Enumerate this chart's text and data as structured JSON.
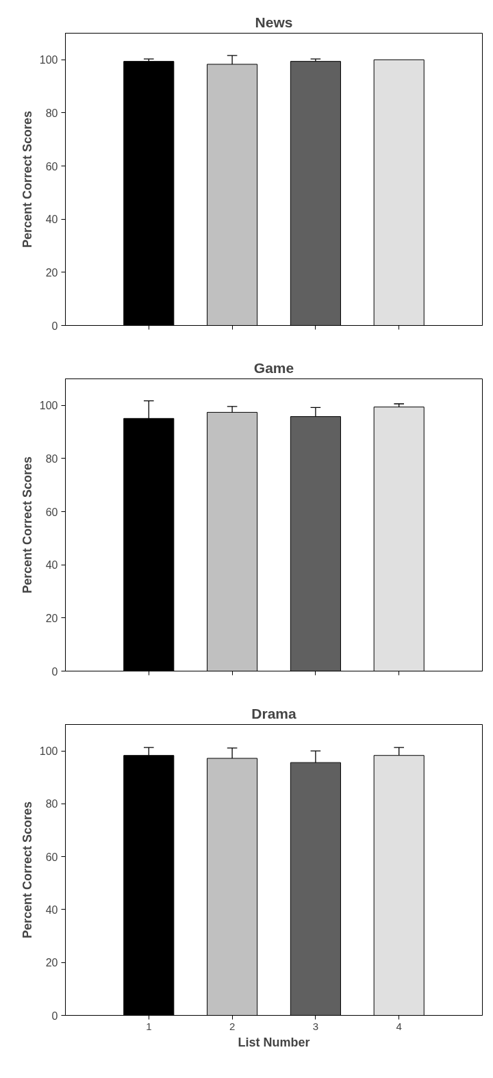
{
  "chart_data": [
    {
      "type": "bar",
      "title": "News",
      "ylabel": "Percent Correct Scores",
      "x": [
        1,
        2,
        3,
        4
      ],
      "xlim": [
        0,
        5
      ],
      "xticks": [
        {
          "value": 1,
          "label": null
        },
        {
          "value": 2,
          "label": null
        },
        {
          "value": 3,
          "label": null
        },
        {
          "value": 4,
          "label": null
        }
      ],
      "ylim": [
        0,
        110
      ],
      "yticks": [
        0,
        20,
        40,
        60,
        80,
        100
      ],
      "tick_labels": "y",
      "colors": [
        "#000000",
        "#c0c0c0",
        "#606060",
        "#e0e0e0"
      ],
      "values": [
        99.4,
        98.3,
        99.4,
        100
      ],
      "errors": [
        [
          99.4,
          100.3
        ],
        [
          98.3,
          101.6
        ],
        [
          99.4,
          100.3
        ],
        null
      ]
    },
    {
      "type": "bar",
      "title": "Game",
      "ylabel": "Percent Correct Scores",
      "x": [
        1,
        2,
        3,
        4
      ],
      "xlim": [
        0,
        5
      ],
      "xticks": [
        {
          "value": 1,
          "label": null
        },
        {
          "value": 2,
          "label": null
        },
        {
          "value": 3,
          "label": null
        },
        {
          "value": 4,
          "label": null
        }
      ],
      "ylim": [
        0,
        110
      ],
      "yticks": [
        0,
        20,
        40,
        60,
        80,
        100
      ],
      "tick_labels": "y",
      "colors": [
        "#000000",
        "#c0c0c0",
        "#606060",
        "#e0e0e0"
      ],
      "values": [
        95.1,
        97.4,
        95.8,
        99.4
      ],
      "errors": [
        [
          95.1,
          101.7
        ],
        [
          97.4,
          99.6
        ],
        [
          95.8,
          99.2
        ],
        [
          99.4,
          100.6
        ]
      ]
    },
    {
      "type": "bar",
      "title": "Drama",
      "ylabel": "Percent Correct Scores",
      "xlabel": "List Number",
      "x": [
        1,
        2,
        3,
        4
      ],
      "xlim": [
        0,
        5
      ],
      "xticks": [
        1,
        2,
        3,
        4
      ],
      "ylim": [
        0,
        110
      ],
      "yticks": [
        0,
        20,
        40,
        60,
        80,
        100
      ],
      "colors": [
        "#000000",
        "#c0c0c0",
        "#606060",
        "#e0e0e0"
      ],
      "values": [
        98.3,
        97.2,
        95.6,
        98.3
      ],
      "errors": [
        [
          98.3,
          101.3
        ],
        [
          97.2,
          101.1
        ],
        [
          95.6,
          100
        ],
        [
          98.3,
          101.3
        ]
      ]
    }
  ]
}
